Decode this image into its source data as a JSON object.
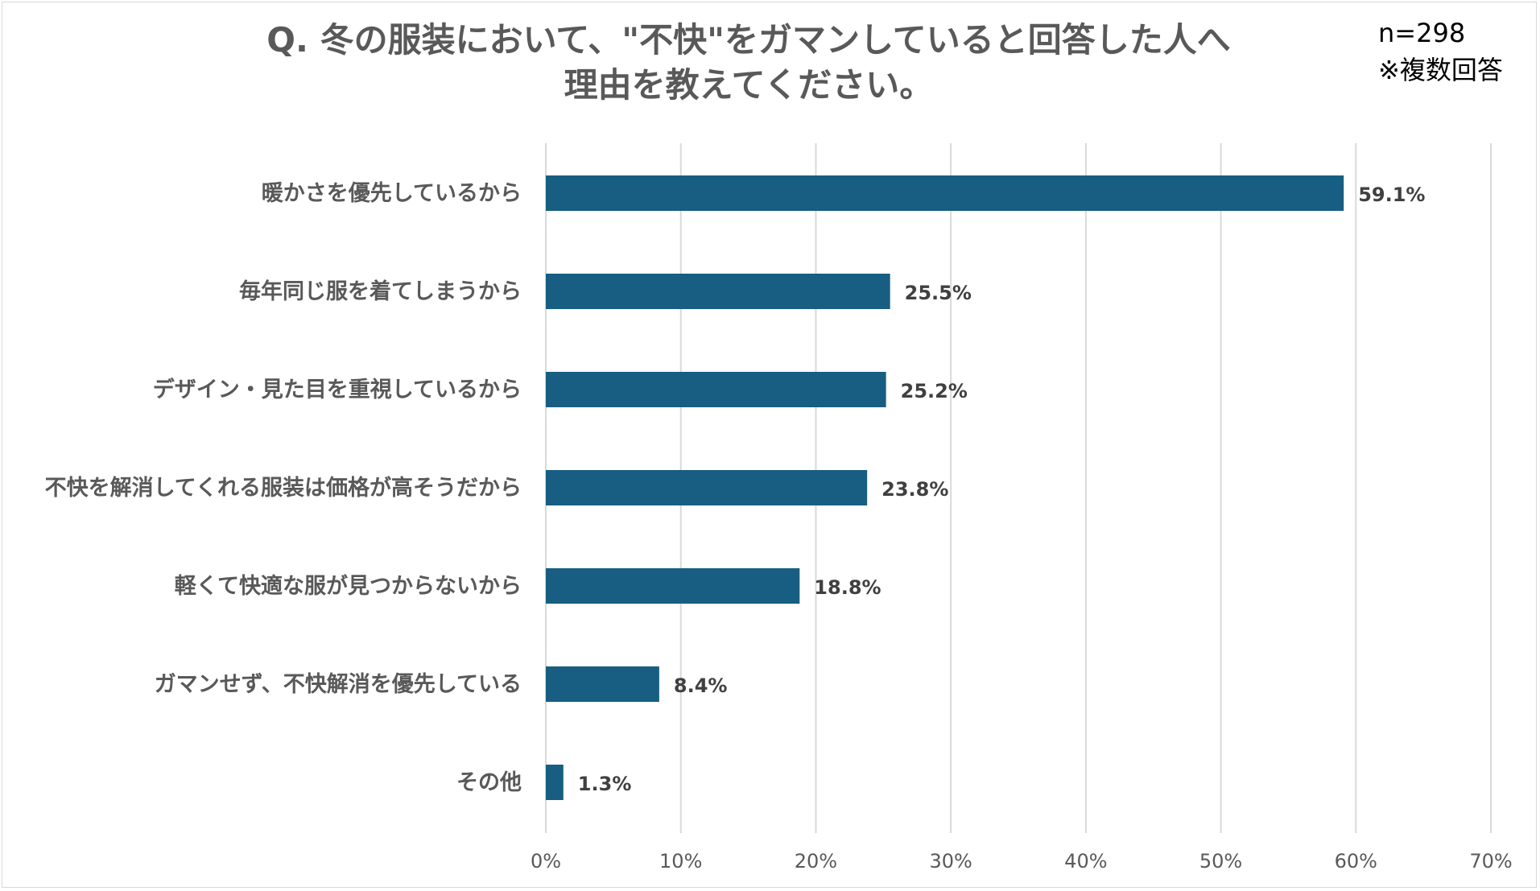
{
  "title_line1": "Q. 冬の服装において、\"不快\"をガマンしていると回答した人へ",
  "title_line2": "理由を教えてください。",
  "sample": "n=298",
  "note": "※複数回答",
  "chart_data": {
    "type": "bar",
    "orientation": "horizontal",
    "title": "Q. 冬の服装において、\"不快\"をガマンしていると回答した人へ 理由を教えてください。",
    "categories": [
      "暖かさを優先しているから",
      "毎年同じ服を着てしまうから",
      "デザイン・見た目を重視しているから",
      "不快を解消してくれる服装は価格が高そうだから",
      "軽くて快適な服が見つからないから",
      "ガマンせず、不快解消を優先している",
      "その他"
    ],
    "values": [
      59.1,
      25.5,
      25.2,
      23.8,
      18.8,
      8.4,
      1.3
    ],
    "value_labels": [
      "59.1%",
      "25.5%",
      "25.2%",
      "23.8%",
      "18.8%",
      "8.4%",
      "1.3%"
    ],
    "xlim": [
      0,
      70
    ],
    "xticks": [
      0,
      10,
      20,
      30,
      40,
      50,
      60,
      70
    ],
    "xtick_labels": [
      "0%",
      "10%",
      "20%",
      "30%",
      "40%",
      "50%",
      "60%",
      "70%"
    ],
    "grid": "vertical",
    "bar_color": "#175e82",
    "grid_color": "#d9d9d9"
  }
}
